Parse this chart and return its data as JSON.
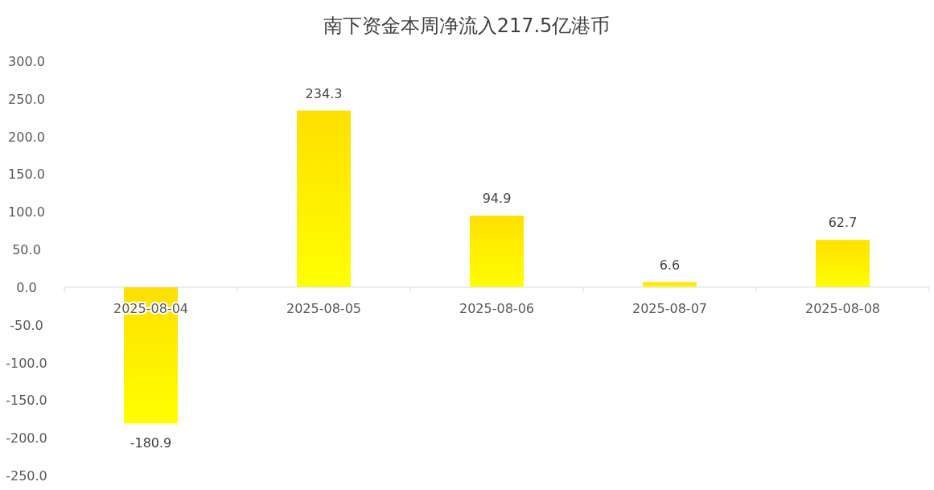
{
  "chart_data": {
    "type": "bar",
    "title": "南下资金本周净流入217.5亿港币",
    "categories": [
      "2025-08-04",
      "2025-08-05",
      "2025-08-06",
      "2025-08-07",
      "2025-08-08"
    ],
    "values": [
      -180.9,
      234.3,
      94.9,
      6.6,
      62.7
    ],
    "color": "#ffe000",
    "ylim": [
      -250,
      300
    ],
    "yticks": [
      {
        "value": -250,
        "label": "-250.0"
      },
      {
        "value": -200,
        "label": "-200.0"
      },
      {
        "value": -150,
        "label": "-150.0"
      },
      {
        "value": -100,
        "label": "-100.0"
      },
      {
        "value": -50,
        "label": "-50.0"
      },
      {
        "value": 0,
        "label": "0.0"
      },
      {
        "value": 50,
        "label": "50.0"
      },
      {
        "value": 100,
        "label": "100.0"
      },
      {
        "value": 150,
        "label": "150.0"
      },
      {
        "value": 200,
        "label": "200.0"
      },
      {
        "value": 250,
        "label": "250.0"
      },
      {
        "value": 300,
        "label": "300.0"
      }
    ],
    "data_labels": true
  }
}
